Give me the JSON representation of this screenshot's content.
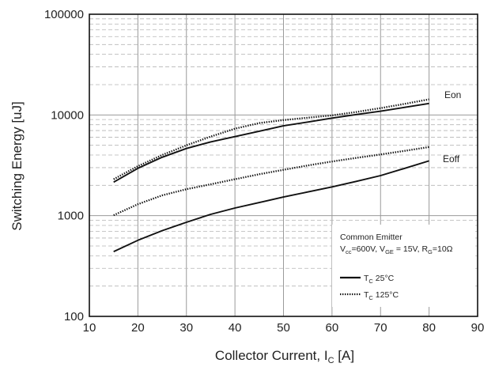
{
  "chart_data": {
    "type": "line",
    "xlabel": "Collector Current, I",
    "xlabel_sub": "C",
    "xlabel_unit": " [A]",
    "ylabel": "Switching Energy [uJ]",
    "xlim": [
      10,
      90
    ],
    "ylim": [
      100,
      100000
    ],
    "y_scale": "log",
    "x_ticks": [
      "10",
      "20",
      "30",
      "40",
      "50",
      "60",
      "70",
      "80",
      "90"
    ],
    "y_ticks": [
      "100",
      "1000",
      "10000",
      "100000"
    ],
    "grid": true,
    "series_labels": {
      "eon": "Eon",
      "eoff": "Eoff"
    },
    "series": [
      {
        "curve": "Eon",
        "temperature": "25°C",
        "style": "solid",
        "x": [
          15,
          20,
          25,
          30,
          35,
          40,
          45,
          50,
          55,
          60,
          65,
          70,
          75,
          80
        ],
        "values": [
          2150,
          2950,
          3800,
          4650,
          5400,
          6100,
          6900,
          7800,
          8500,
          9300,
          10100,
          10900,
          11900,
          13000
        ]
      },
      {
        "curve": "Eon",
        "temperature": "125°C",
        "style": "dotted",
        "x": [
          15,
          20,
          25,
          30,
          35,
          40,
          45,
          50,
          55,
          60,
          65,
          70,
          75,
          80
        ],
        "values": [
          2300,
          3100,
          4000,
          5000,
          6100,
          7300,
          8300,
          8900,
          9400,
          9900,
          10700,
          11700,
          12900,
          14300
        ]
      },
      {
        "curve": "Eoff",
        "temperature": "25°C",
        "style": "solid",
        "x": [
          15,
          20,
          25,
          30,
          35,
          40,
          45,
          50,
          55,
          60,
          65,
          70,
          75,
          80
        ],
        "values": [
          440,
          570,
          710,
          860,
          1030,
          1190,
          1350,
          1530,
          1720,
          1930,
          2190,
          2500,
          2950,
          3500
        ]
      },
      {
        "curve": "Eoff",
        "temperature": "125°C",
        "style": "dotted",
        "x": [
          15,
          20,
          25,
          30,
          35,
          40,
          45,
          50,
          55,
          60,
          65,
          70,
          75,
          80
        ],
        "values": [
          1010,
          1300,
          1590,
          1830,
          2050,
          2300,
          2580,
          2850,
          3150,
          3450,
          3750,
          4050,
          4400,
          4800
        ]
      }
    ],
    "legend": {
      "title": "Common Emitter",
      "conditions": {
        "vcc_v": "V",
        "vcc_sub": "cc",
        "vcc_val": "=600V, ",
        "vge_v": "V",
        "vge_sub": "GE",
        "vge_val": " = 15V, ",
        "rg_r": "R",
        "rg_sub": "G",
        "rg_val": "=10Ω"
      },
      "entries": [
        {
          "t": "T",
          "t_sub": "C",
          "t_val": " 25°C",
          "style": "solid"
        },
        {
          "t": "T",
          "t_sub": "C",
          "t_val": " 125°C",
          "style": "dotted"
        }
      ],
      "placement": "bottom-right"
    },
    "colors": {
      "line": "#111111",
      "grid_major": "#9a9a9a",
      "grid_minor": "#b5b5b5"
    }
  }
}
